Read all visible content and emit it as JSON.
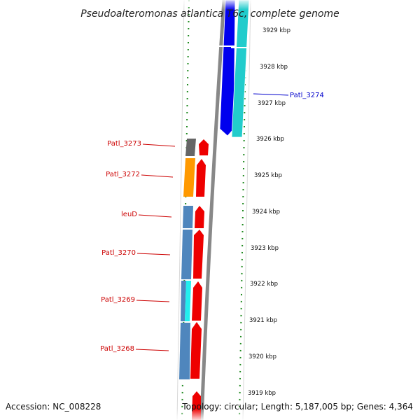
{
  "title": "Pseudoalteromonas atlantica T6c, complete genome",
  "ticks": [
    "3929 kbp",
    "3928 kbp",
    "3927 kbp",
    "3926 kbp",
    "3925 kbp",
    "3924 kbp",
    "3923 kbp",
    "3922 kbp",
    "3921 kbp",
    "3920 kbp",
    "3919 kbp"
  ],
  "labels": [
    {
      "text": "Patl_3274",
      "color": "#0000cc"
    },
    {
      "text": "Patl_3273",
      "color": "#cc0000"
    },
    {
      "text": "Patl_3272",
      "color": "#cc0000"
    },
    {
      "text": "leuD",
      "color": "#cc0000"
    },
    {
      "text": "Patl_3270",
      "color": "#cc0000"
    },
    {
      "text": "Patl_3269",
      "color": "#cc0000"
    },
    {
      "text": "Patl_3268",
      "color": "#cc0000"
    }
  ],
  "colors": {
    "forward_cds": "#ee0000",
    "reverse_cds": "#0000ee",
    "backbone": "#888888",
    "tick_dots": "#228b22",
    "cog_steelblue": "#4f86bd",
    "cog_orange": "#ff9900",
    "cog_gray": "#666666",
    "cog_cyan": "#22cccc"
  },
  "footer": {
    "accession": "Accession: NC_008228",
    "topology": "Topology: circular; Length: 5,187,005 bp; Genes: 4,364"
  }
}
